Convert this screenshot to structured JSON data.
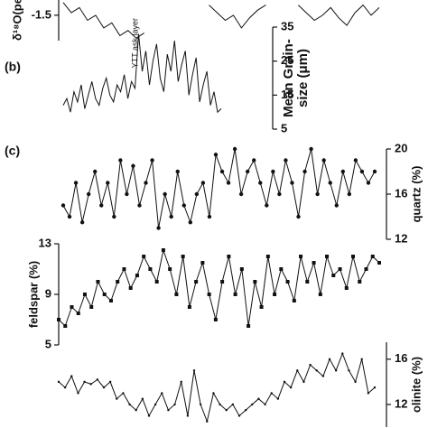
{
  "chart_data": [
    {
      "type": "line",
      "ylabel": "δ¹⁸O(pe",
      "ylim": [
        -2.0,
        -1.2
      ],
      "yticks": [
        -1.5
      ],
      "axis_side": "left",
      "color": "#111111",
      "marker": "none",
      "values": [
        -1.25,
        -1.45,
        -1.35,
        -1.6,
        -1.5,
        -1.75,
        -1.65,
        -1.9,
        -1.8,
        -1.95,
        -1.85,
        null,
        null,
        null,
        null,
        null,
        null,
        null,
        -1.3,
        -1.45,
        -1.6,
        -1.5,
        -1.75,
        -1.55,
        -1.4,
        -1.3,
        null,
        null,
        null,
        -1.3,
        -1.45,
        -1.6,
        -1.5,
        -1.35,
        -1.55,
        -1.7,
        -1.45,
        -1.3,
        -1.5,
        -1.35
      ]
    },
    {
      "type": "line",
      "panel_label": "(b)",
      "annotation": "YTT ask layer",
      "ylabel": [
        "Mean Grain-",
        "size (μm)"
      ],
      "ylim": [
        5,
        35
      ],
      "yticks": [
        5,
        15,
        25,
        35
      ],
      "axis_side": "right",
      "color": "#111111",
      "marker": "none",
      "values": [
        12,
        14,
        10,
        16,
        13,
        18,
        11,
        15,
        19,
        14,
        12,
        17,
        20,
        15,
        13,
        18,
        16,
        21,
        14,
        19,
        17,
        33,
        22,
        28,
        18,
        25,
        30,
        20,
        16,
        27,
        22,
        31,
        19,
        24,
        28,
        15,
        21,
        26,
        13,
        18,
        22,
        12,
        16,
        10,
        11
      ]
    },
    {
      "type": "line",
      "panel_label": "(c)",
      "ylabel": "quartz (%)",
      "ylim": [
        12,
        20
      ],
      "yticks": [
        12,
        16,
        20
      ],
      "axis_side": "right",
      "color": "#111111",
      "marker": "circle",
      "values": [
        15,
        14,
        17,
        13.5,
        16,
        18,
        15,
        17,
        14,
        19,
        16,
        18.5,
        15,
        17,
        19,
        13,
        16,
        14,
        18,
        15,
        13.5,
        16,
        17,
        14,
        19.5,
        18,
        17,
        20,
        16,
        18,
        19,
        17,
        15,
        18,
        16,
        19,
        17,
        14,
        18,
        20,
        16,
        19,
        17,
        15,
        18,
        16,
        19,
        18,
        17,
        18
      ]
    },
    {
      "type": "line",
      "ylabel": "feldspar (%)",
      "ylim": [
        5,
        13
      ],
      "yticks": [
        5,
        9,
        13
      ],
      "axis_side": "left",
      "color": "#111111",
      "marker": "square",
      "values": [
        7,
        6.5,
        8,
        7.5,
        9,
        8,
        10,
        9,
        8.5,
        10,
        11,
        9.5,
        10.5,
        12,
        11,
        10,
        12.5,
        11,
        9,
        12,
        8,
        10,
        11.5,
        9,
        7,
        10,
        12,
        9,
        11,
        6.5,
        10,
        8,
        12,
        9,
        11,
        10,
        8.5,
        12,
        10,
        11.5,
        9,
        12,
        10.5,
        11,
        9.5,
        12,
        10,
        11,
        12,
        11.5
      ]
    },
    {
      "type": "line",
      "ylabel": "olinite (%)",
      "ylim": [
        10,
        17.5
      ],
      "yticks": [
        12,
        16
      ],
      "axis_side": "right",
      "color": "#111111",
      "marker": "dot",
      "values": [
        14,
        13.5,
        14.5,
        13,
        14,
        13.8,
        14.2,
        13.5,
        14,
        12.5,
        13,
        12,
        11.5,
        12.5,
        11,
        12,
        13,
        11.5,
        12,
        14,
        11,
        15,
        12,
        10.5,
        13,
        12,
        11.5,
        12,
        11,
        11.5,
        12,
        12.5,
        12,
        13,
        12.5,
        14,
        13.5,
        15,
        14,
        15.5,
        15,
        14.5,
        16,
        15,
        16.5,
        15,
        14,
        16,
        13,
        13.5
      ]
    }
  ]
}
